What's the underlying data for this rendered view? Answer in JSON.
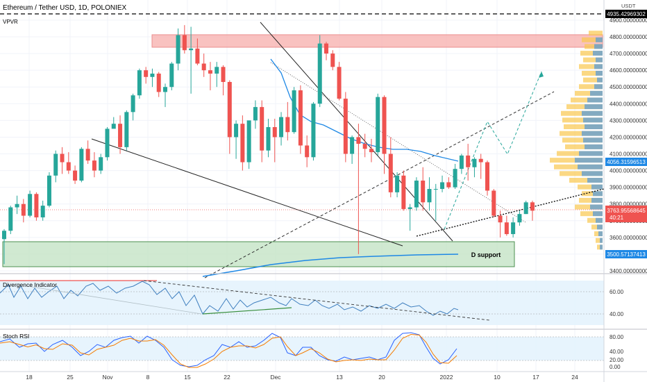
{
  "chart_title": "Ethereum / Tether USD, 1D, POLONIEX",
  "vpvr_label": "VPVR",
  "quote_currency": "USDT",
  "colors": {
    "up": "#26a69a",
    "down": "#ef5350",
    "ma": "#1e88e5",
    "resistance_fill": "#f8b3b1",
    "support_fill": "#c8e6c9",
    "vp_yellow": "#f9c74f",
    "vp_blue": "#5b9bd5",
    "divergence_line": "#3f7fbf",
    "stoch_k": "#2962ff",
    "stoch_d": "#f57c00",
    "indicator_bg": "#e3f2fd"
  },
  "chart_data": [
    {
      "type": "candlestick",
      "title": "Ethereum / Tether USD, 1D, POLONIEX",
      "x_ticks": [
        "18",
        "25",
        "Nov",
        "8",
        "15",
        "22",
        "Dec",
        "13",
        "20",
        "2022",
        "10",
        "17",
        "24"
      ],
      "y_ticks": [
        "3400.00000000",
        "3500.00000000",
        "3600.00000000",
        "3700.00000000",
        "3800.00000000",
        "3900.00000000",
        "4000.00000000",
        "4100.00000000",
        "4200.00000000",
        "4300.00000000",
        "4400.00000000",
        "4500.00000000",
        "4600.00000000",
        "4700.00000000",
        "4800.00000000",
        "4900.00000000"
      ],
      "price_labels": {
        "top_line": "4935.42969302",
        "ma_value": "4056.31596513",
        "current_price": "3763.95568645",
        "countdown": "40:21",
        "support_value": "3500.57137413"
      },
      "zones": [
        {
          "label": "",
          "from": 4745,
          "to": 4820
        },
        {
          "label": "D support",
          "from": 3425,
          "to": 3580
        }
      ],
      "candles_ohlc": [
        [
          3590,
          3650,
          3440,
          3640
        ],
        [
          3640,
          3790,
          3620,
          3780
        ],
        [
          3780,
          3850,
          3740,
          3800
        ],
        [
          3800,
          3830,
          3690,
          3730
        ],
        [
          3730,
          3880,
          3720,
          3860
        ],
        [
          3860,
          3870,
          3700,
          3720
        ],
        [
          3720,
          3820,
          3700,
          3790
        ],
        [
          3790,
          3990,
          3780,
          3970
        ],
        [
          3970,
          4120,
          3930,
          4100
        ],
        [
          4100,
          4140,
          3980,
          4050
        ],
        [
          4050,
          4110,
          3980,
          4000
        ],
        [
          4000,
          4030,
          3920,
          3940
        ],
        [
          3940,
          4140,
          3930,
          4130
        ],
        [
          4130,
          4180,
          4040,
          4060
        ],
        [
          4060,
          4110,
          3960,
          4000
        ],
        [
          4000,
          4100,
          3980,
          4080
        ],
        [
          4080,
          4260,
          4060,
          4250
        ],
        [
          4250,
          4320,
          4260,
          4280
        ],
        [
          4280,
          4330,
          4100,
          4140
        ],
        [
          4140,
          4360,
          4120,
          4350
        ],
        [
          4350,
          4460,
          4300,
          4450
        ],
        [
          4450,
          4610,
          4430,
          4600
        ],
        [
          4600,
          4620,
          4520,
          4560
        ],
        [
          4560,
          4610,
          4500,
          4580
        ],
        [
          4580,
          4590,
          4440,
          4470
        ],
        [
          4470,
          4520,
          4380,
          4500
        ],
        [
          4500,
          4650,
          4480,
          4640
        ],
        [
          4640,
          4850,
          4600,
          4810
        ],
        [
          4810,
          4870,
          4700,
          4720
        ],
        [
          4720,
          4860,
          4460,
          4730
        ],
        [
          4730,
          4790,
          4630,
          4640
        ],
        [
          4640,
          4700,
          4560,
          4600
        ],
        [
          4600,
          4650,
          4480,
          4580
        ],
        [
          4580,
          4650,
          4500,
          4620
        ],
        [
          4620,
          4630,
          4450,
          4530
        ],
        [
          4530,
          4540,
          4100,
          4200
        ],
        [
          4200,
          4300,
          4070,
          4280
        ],
        [
          4280,
          4330,
          4000,
          4050
        ],
        [
          4050,
          4280,
          4010,
          4300
        ],
        [
          4300,
          4420,
          4250,
          4380
        ],
        [
          4380,
          4420,
          4050,
          4120
        ],
        [
          4120,
          4310,
          4080,
          4260
        ],
        [
          4260,
          4310,
          4050,
          4200
        ],
        [
          4200,
          4350,
          4150,
          4320
        ],
        [
          4320,
          4410,
          4180,
          4230
        ],
        [
          4230,
          4500,
          4220,
          4480
        ],
        [
          4480,
          4510,
          4100,
          4150
        ],
        [
          4150,
          4210,
          4020,
          4080
        ],
        [
          4080,
          4410,
          4060,
          4400
        ],
        [
          4400,
          4810,
          4380,
          4760
        ],
        [
          4760,
          4770,
          4660,
          4700
        ],
        [
          4700,
          4720,
          4600,
          4620
        ],
        [
          4620,
          4650,
          4420,
          4430
        ],
        [
          4430,
          4470,
          4050,
          4100
        ],
        [
          4100,
          4210,
          4040,
          4200
        ],
        [
          4200,
          4280,
          3500,
          4160
        ],
        [
          4160,
          4220,
          4080,
          4130
        ],
        [
          4130,
          4190,
          4050,
          4110
        ],
        [
          4110,
          4460,
          4090,
          4440
        ],
        [
          4440,
          4450,
          3980,
          4100
        ],
        [
          4100,
          4200,
          3840,
          3870
        ],
        [
          3870,
          3990,
          3840,
          3970
        ],
        [
          3970,
          4000,
          3760,
          3770
        ],
        [
          3770,
          3800,
          3640,
          3780
        ],
        [
          3780,
          3960,
          3760,
          3940
        ],
        [
          3940,
          4020,
          3760,
          3810
        ],
        [
          3810,
          3960,
          3760,
          3890
        ],
        [
          3890,
          3920,
          3700,
          3890
        ],
        [
          3890,
          3970,
          3870,
          3930
        ],
        [
          3930,
          3960,
          3890,
          3900
        ],
        [
          3900,
          4040,
          3890,
          4010
        ],
        [
          4010,
          4100,
          3980,
          4090
        ],
        [
          4090,
          4160,
          3940,
          4020
        ],
        [
          4020,
          4080,
          3960,
          4070
        ],
        [
          4070,
          4100,
          3950,
          4050
        ],
        [
          4050,
          4060,
          3850,
          3880
        ],
        [
          3880,
          3890,
          3720,
          3730
        ],
        [
          3730,
          3760,
          3600,
          3690
        ],
        [
          3690,
          3730,
          3610,
          3620
        ],
        [
          3620,
          3720,
          3600,
          3690
        ],
        [
          3690,
          3760,
          3670,
          3740
        ],
        [
          3740,
          3820,
          3740,
          3810
        ],
        [
          3810,
          3820,
          3700,
          3760
        ]
      ],
      "moving_average": "blue line, ends near 4056.32",
      "long_ma": "blue line rising, ends near 3500.57"
    },
    {
      "type": "line",
      "title": "Divergence Indicator",
      "y_ticks": [
        "40.00",
        "60.00"
      ],
      "series": []
    },
    {
      "type": "line",
      "title": "Stoch RSI",
      "y_ticks": [
        "0.00",
        "20.00",
        "40.00",
        "80.00"
      ],
      "series": []
    }
  ]
}
